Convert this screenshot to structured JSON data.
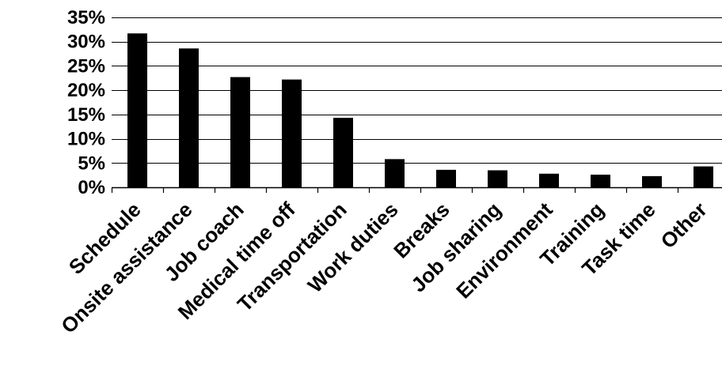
{
  "chart_data": {
    "type": "bar",
    "title": "",
    "xlabel": "",
    "ylabel": "",
    "categories": [
      "Schedule",
      "Onsite assistance",
      "Job coach",
      "Medical time off",
      "Transportation",
      "Work duties",
      "Breaks",
      "Job sharing",
      "Environment",
      "Training",
      "Task time",
      "Other"
    ],
    "values": [
      31.7,
      28.6,
      22.7,
      22.2,
      14.3,
      5.8,
      3.6,
      3.5,
      2.8,
      2.6,
      2.3,
      4.3
    ],
    "ylim": [
      0,
      35
    ],
    "yticks": [
      0,
      5,
      10,
      15,
      20,
      25,
      30,
      35
    ],
    "ytick_labels": [
      "0%",
      "5%",
      "10%",
      "15%",
      "20%",
      "25%",
      "30%",
      "35%"
    ],
    "grid": true,
    "legend": "none",
    "bar_color": "#000000",
    "grid_color": "#000000"
  }
}
